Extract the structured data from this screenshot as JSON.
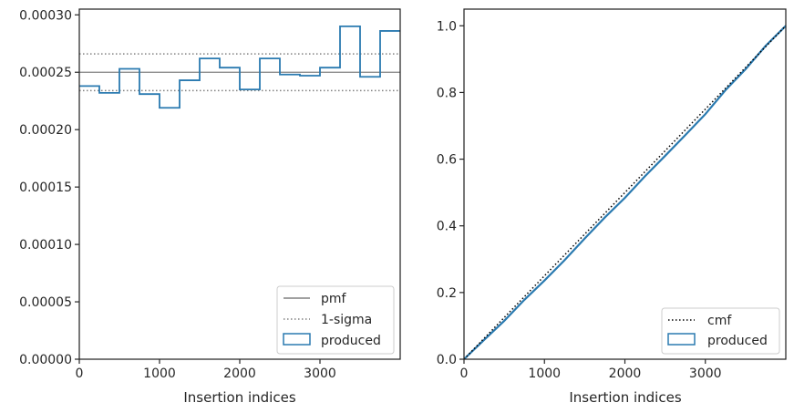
{
  "chart_data": [
    {
      "type": "line",
      "xlabel": "Insertion indices",
      "ylabel": "",
      "xlim": [
        0,
        4000
      ],
      "ylim": [
        0,
        0.000305
      ],
      "xticks": [
        0,
        1000,
        2000,
        3000
      ],
      "xtick_labels": [
        "0",
        "1000",
        "2000",
        "3000"
      ],
      "yticks": [
        0,
        5e-05,
        0.0001,
        0.00015,
        0.0002,
        0.00025,
        0.0003
      ],
      "ytick_labels": [
        "0.00000",
        "0.00005",
        "0.00010",
        "0.00015",
        "0.00020",
        "0.00025",
        "0.00030"
      ],
      "legend_position": "lower-right",
      "pmf": {
        "name": "pmf",
        "value": 0.00025,
        "color": "#808080"
      },
      "sigma": {
        "name": "1-sigma",
        "values": [
          0.000234,
          0.000266
        ],
        "color": "#808080"
      },
      "produced": {
        "name": "produced",
        "color": "#2a7ab0",
        "bin_edges": [
          0,
          250,
          500,
          750,
          1000,
          1250,
          1500,
          1750,
          2000,
          2250,
          2500,
          2750,
          3000,
          3250,
          3500,
          3750,
          4000
        ],
        "values": [
          0.000238,
          0.000232,
          0.000253,
          0.000231,
          0.000219,
          0.000243,
          0.000262,
          0.000254,
          0.000235,
          0.000262,
          0.000248,
          0.000247,
          0.000254,
          0.00029,
          0.000246,
          0.000286
        ]
      }
    },
    {
      "type": "line",
      "xlabel": "Insertion indices",
      "ylabel": "",
      "xlim": [
        0,
        4000
      ],
      "ylim": [
        0,
        1.05
      ],
      "xticks": [
        0,
        1000,
        2000,
        3000
      ],
      "xtick_labels": [
        "0",
        "1000",
        "2000",
        "3000"
      ],
      "yticks": [
        0,
        0.2,
        0.4,
        0.6,
        0.8,
        1.0
      ],
      "ytick_labels": [
        "0.0",
        "0.2",
        "0.4",
        "0.6",
        "0.8",
        "1.0"
      ],
      "legend_position": "lower-right",
      "cmf": {
        "name": "cmf",
        "x": [
          0,
          4000
        ],
        "y": [
          0,
          1.0
        ],
        "color": "#000000"
      },
      "produced": {
        "name": "produced",
        "color": "#2a7ab0",
        "x": [
          0,
          250,
          500,
          750,
          1000,
          1250,
          1500,
          1750,
          2000,
          2250,
          2500,
          2750,
          3000,
          3250,
          3500,
          3750,
          4000
        ],
        "y": [
          0,
          0.058,
          0.115,
          0.178,
          0.236,
          0.297,
          0.362,
          0.425,
          0.484,
          0.549,
          0.61,
          0.672,
          0.735,
          0.807,
          0.87,
          0.94,
          1.0
        ]
      }
    }
  ]
}
